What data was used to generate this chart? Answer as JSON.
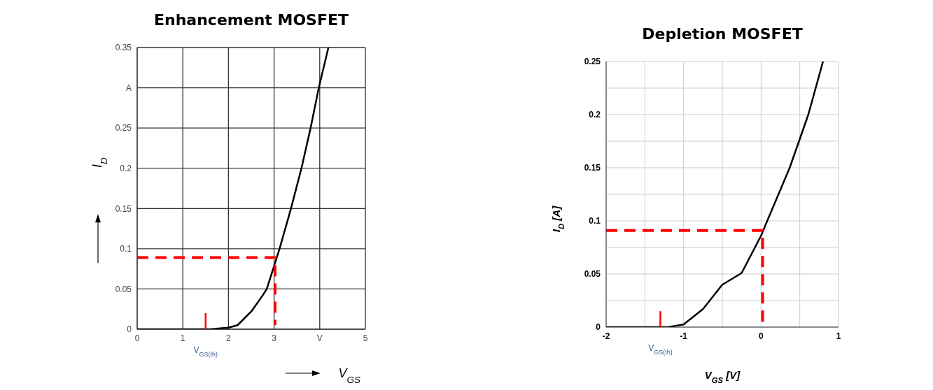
{
  "chart_data": [
    {
      "type": "line",
      "title": "Enhancement MOSFET",
      "xlabel": "V$_{GS}$",
      "ylabel": "I$_{D}$",
      "xlim": [
        0,
        5
      ],
      "xticks": [
        0,
        1,
        2,
        3,
        {
          "value": 4,
          "label": "V"
        },
        5
      ],
      "ylim": [
        0,
        0.35
      ],
      "yticks": [
        0,
        0.05,
        0.1,
        0.15,
        0.2,
        0.25,
        {
          "value": 0.3,
          "label": "A"
        },
        0.35
      ],
      "grid": true,
      "series": [
        {
          "color": "#000000",
          "line_style": "solid",
          "x": [
            0,
            1,
            1.6,
            2,
            2.2,
            2.5,
            2.75,
            2.84,
            3.12,
            3.37,
            3.6,
            3.8,
            3.98,
            4.19
          ],
          "values": [
            0,
            0,
            0,
            0.002,
            0.005,
            0.022,
            0.042,
            0.05,
            0.1,
            0.15,
            0.2,
            0.25,
            0.3,
            0.35
          ]
        },
        {
          "color": "#ff0000",
          "line_style": "dashed",
          "x": [
            0,
            3.02,
            3.02
          ],
          "values": [
            0.089,
            0.089,
            0.005
          ]
        },
        {
          "color": "#ff0000",
          "line_style": "solid",
          "x": [
            1.5,
            1.5
          ],
          "values": [
            0,
            0.02
          ]
        }
      ],
      "annotations": [
        {
          "text": "V$_{GS(th)}$",
          "x": 1.5,
          "y": 0
        }
      ]
    },
    {
      "type": "line",
      "title": "Depletion MOSFET",
      "xlabel": "V$_{GS}$ [V]",
      "ylabel": "I$_{D}$ [A]",
      "xlim": [
        -2,
        1
      ],
      "xticks": [
        -2,
        {
          "value": -1.5,
          "label": null
        },
        -1,
        {
          "value": -0.5,
          "label": null
        },
        0,
        {
          "value": 0.5,
          "label": null
        },
        1
      ],
      "ylim": [
        0,
        0.25
      ],
      "yticks": [
        0,
        {
          "value": 0.025,
          "label": null
        },
        0.05,
        {
          "value": 0.075,
          "label": null
        },
        0.1,
        {
          "value": 0.125,
          "label": null
        },
        0.15,
        {
          "value": 0.175,
          "label": null
        },
        0.2,
        {
          "value": 0.225,
          "label": null
        },
        0.25
      ],
      "grid": true,
      "series": [
        {
          "color": "#000000",
          "line_style": "solid",
          "x": [
            -2,
            -1.5,
            -1.2,
            -1,
            -0.75,
            -0.5,
            -0.27,
            -0.25,
            0,
            0.08,
            0.37,
            0.61,
            0.8
          ],
          "values": [
            0,
            0,
            0,
            0.0025,
            0.017,
            0.04,
            0.05,
            0.051,
            0.086,
            0.1,
            0.15,
            0.2,
            0.25
          ]
        },
        {
          "color": "#ff0000",
          "line_style": "dashed",
          "x": [
            -2,
            0.02,
            0.02
          ],
          "values": [
            0.091,
            0.091,
            0
          ]
        },
        {
          "color": "#ff0000",
          "line_style": "solid",
          "x": [
            -1.3,
            -1.3
          ],
          "values": [
            0,
            0.015
          ]
        }
      ],
      "annotations": [
        {
          "text": "V$_{GS(th)}$",
          "x": -1.3,
          "y": 0
        }
      ]
    }
  ]
}
